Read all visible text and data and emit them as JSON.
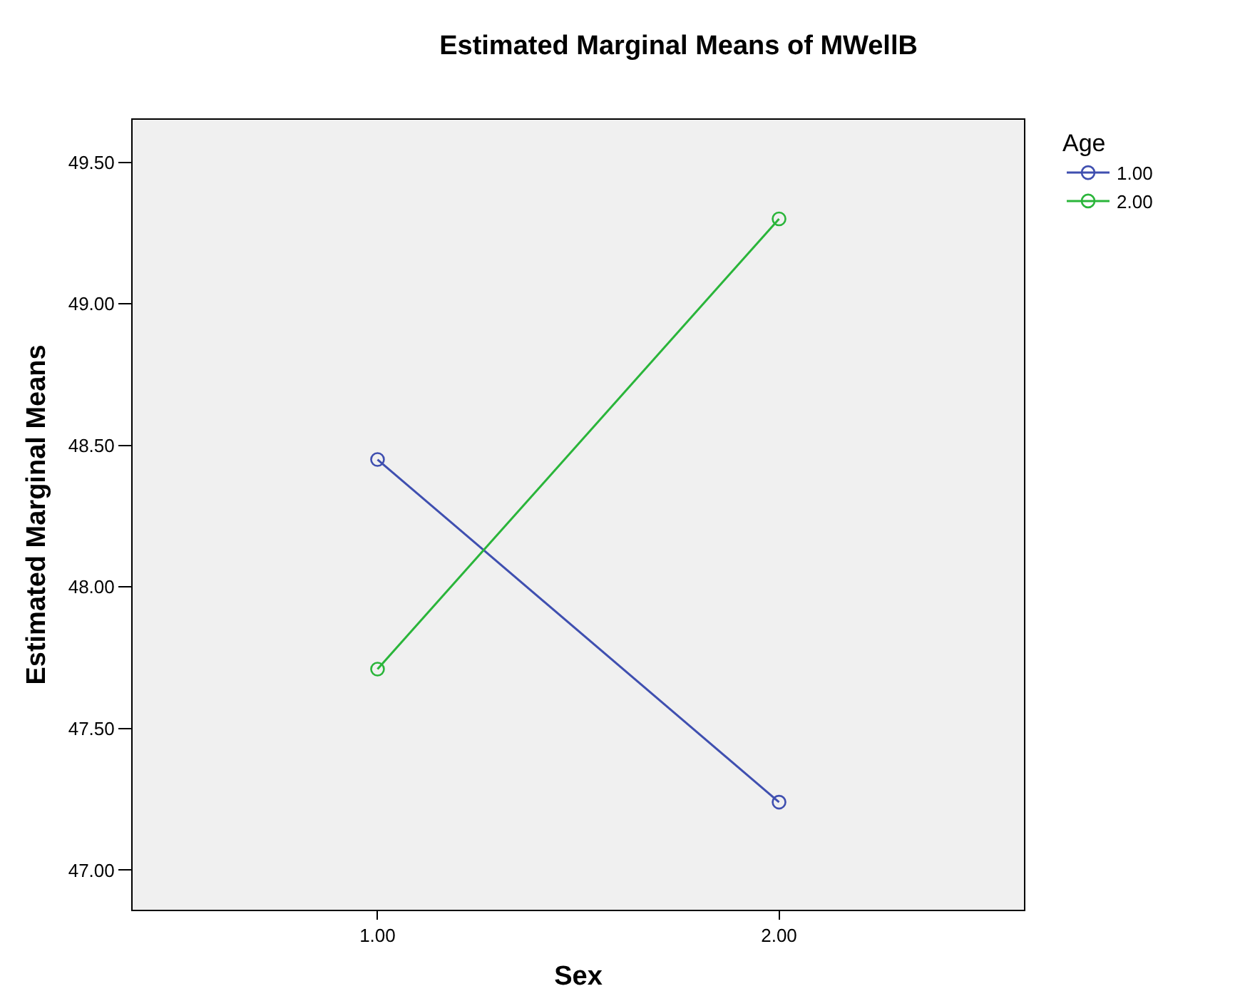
{
  "chart_data": {
    "type": "line",
    "title": "Estimated Marginal Means of MWellB",
    "xlabel": "Sex",
    "ylabel": "Estimated Marginal Means",
    "legend_title": "Age",
    "categories": [
      "1.00",
      "2.00"
    ],
    "series": [
      {
        "name": "1.00",
        "color": "#3f4fb0",
        "values": [
          48.45,
          47.24
        ]
      },
      {
        "name": "2.00",
        "color": "#2ab53a",
        "values": [
          47.71,
          49.3
        ]
      }
    ],
    "ylim": [
      46.86,
      49.65
    ],
    "yticks": [
      {
        "value": 47,
        "label": "47.00"
      },
      {
        "value": 47.5,
        "label": "47.50"
      },
      {
        "value": 48,
        "label": "48.00"
      },
      {
        "value": 48.5,
        "label": "48.50"
      },
      {
        "value": 49,
        "label": "49.00"
      },
      {
        "value": 49.5,
        "label": "49.50"
      }
    ],
    "grid": false,
    "legend": "top right",
    "marker": "circle",
    "line_style": "solid"
  }
}
